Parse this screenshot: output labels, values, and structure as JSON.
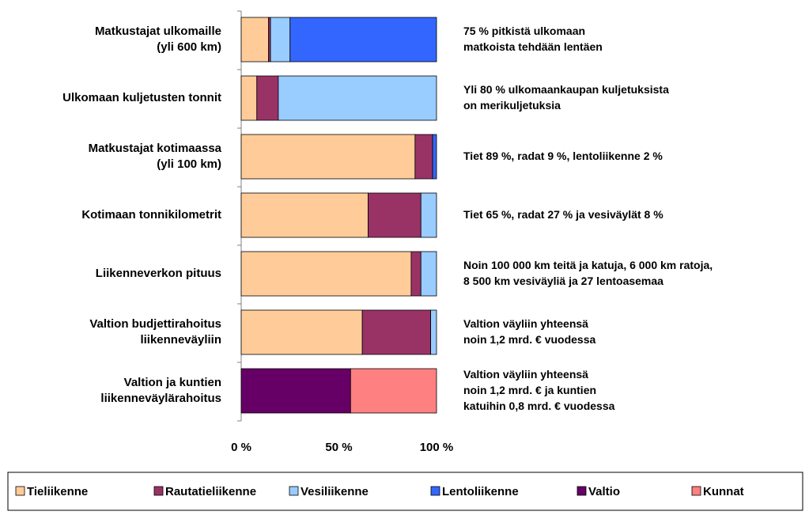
{
  "chart_data": {
    "type": "stacked-barh",
    "categories": [
      "Matkustajat ulkomaille\n(yli 600 km)",
      "Ulkomaan kuljetusten tonnit",
      "Matkustajat kotimaassa\n(yli 100 km)",
      "Kotimaan tonnikilometrit",
      "Liikenneverkon pituus",
      "Valtion budjettirahoitus\nliikenneväyliin",
      "Valtion ja kuntien\nliikenneväylärahoitus"
    ],
    "annotations": [
      "75 % pitkistä ulkomaan\nmatkoista tehdään lentäen",
      "Yli 80 % ulkomaankaupan kuljetuksista\non merikuljetuksia",
      "Tiet 89 %, radat 9 %, lentoliikenne 2 %",
      "Tiet 65 %, radat 27 % ja vesiväylät 8 %",
      "Noin 100 000 km teitä ja katuja, 6 000 km ratoja,\n8 500 km vesiväyliä ja 27 lentoasemaa",
      "Valtion väyliin yhteensä\nnoin 1,2 mrd. € vuodessa",
      "Valtion väyliin yhteensä\nnoin 1,2 mrd. € ja kuntien\nkatuihin 0,8 mrd. € vuodessa"
    ],
    "series": [
      {
        "name": "Tieliikenne",
        "color": "#ffcc99",
        "values": [
          14,
          8,
          89,
          65,
          87,
          62,
          0
        ]
      },
      {
        "name": "Rautatieliikenne",
        "color": "#993366",
        "values": [
          1,
          11,
          9,
          27,
          5,
          35,
          0
        ]
      },
      {
        "name": "Vesiliikenne",
        "color": "#99ccff",
        "values": [
          10,
          81,
          0,
          8,
          8,
          3,
          0
        ]
      },
      {
        "name": "Lentoliikenne",
        "color": "#3366ff",
        "values": [
          75,
          0,
          2,
          0,
          0,
          0,
          0
        ]
      },
      {
        "name": "Valtio",
        "color": "#660066",
        "values": [
          0,
          0,
          0,
          0,
          0,
          0,
          56
        ]
      },
      {
        "name": "Kunnat",
        "color": "#ff8080",
        "values": [
          0,
          0,
          0,
          0,
          0,
          0,
          44
        ]
      }
    ],
    "xlim": [
      0,
      100
    ],
    "xticks": [
      {
        "value": 0,
        "label": "0 %"
      },
      {
        "value": 50,
        "label": "50 %"
      },
      {
        "value": 100,
        "label": "100 %"
      }
    ],
    "legend": "bottom"
  }
}
